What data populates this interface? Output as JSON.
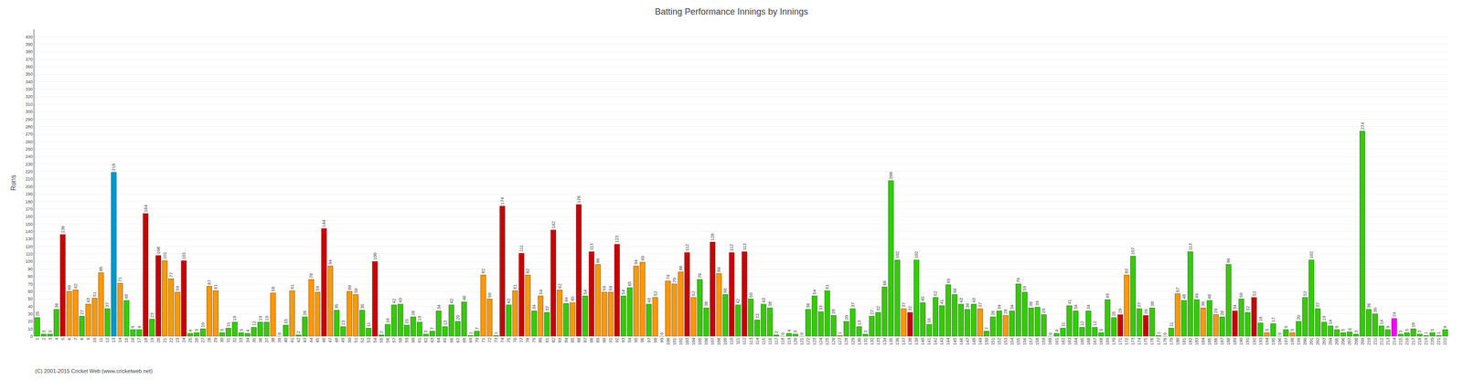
{
  "chart_data": {
    "type": "bar",
    "title": "Batting Performance Innings by Innings",
    "ylabel": "Runs",
    "annotations": [
      "(C) 2001-2015 Cricket Web (www.cricketweb.net)"
    ],
    "categories": [
      "1",
      "2",
      "3",
      "4",
      "5",
      "6",
      "7",
      "8",
      "9",
      "10",
      "11",
      "12",
      "13",
      "14",
      "15",
      "16",
      "17",
      "18",
      "19",
      "20",
      "21",
      "22",
      "23",
      "24",
      "25",
      "26",
      "27",
      "28",
      "29",
      "30",
      "31",
      "32",
      "33",
      "34",
      "35",
      "36",
      "37",
      "38",
      "39",
      "40",
      "41",
      "42",
      "43",
      "44",
      "45",
      "46",
      "47",
      "48",
      "49",
      "50",
      "51",
      "52",
      "53",
      "54",
      "55",
      "56",
      "57",
      "58",
      "59",
      "60",
      "61",
      "62",
      "63",
      "64",
      "65",
      "66",
      "67",
      "68",
      "69",
      "70",
      "71",
      "72",
      "73",
      "74",
      "75",
      "76",
      "77",
      "78",
      "79",
      "80",
      "81",
      "82",
      "83",
      "84",
      "85",
      "86",
      "87",
      "88",
      "89",
      "90",
      "91",
      "92",
      "93",
      "94",
      "95",
      "96",
      "97",
      "98",
      "99",
      "100",
      "101",
      "102",
      "103",
      "104",
      "105",
      "106",
      "107",
      "108",
      "109",
      "110",
      "111",
      "112",
      "113",
      "114",
      "115",
      "116",
      "117",
      "118",
      "119",
      "120",
      "121",
      "122",
      "123",
      "124",
      "125",
      "126",
      "127",
      "128",
      "129",
      "130",
      "131",
      "132",
      "133",
      "134",
      "135",
      "136",
      "137",
      "138",
      "139",
      "140",
      "141",
      "142",
      "143",
      "144",
      "145",
      "146",
      "147",
      "148",
      "149",
      "150",
      "151",
      "152",
      "153",
      "154",
      "155",
      "156",
      "157",
      "158",
      "159",
      "160",
      "161",
      "162",
      "163",
      "164",
      "165",
      "166",
      "167",
      "168",
      "169",
      "170",
      "171",
      "172",
      "173",
      "174",
      "175",
      "176",
      "177",
      "178",
      "179",
      "180",
      "181",
      "182",
      "183",
      "184",
      "185",
      "186",
      "187",
      "188",
      "189",
      "190",
      "191",
      "192",
      "193",
      "194",
      "195",
      "196",
      "197",
      "198",
      "199",
      "200",
      "201",
      "202",
      "203",
      "204",
      "205",
      "206",
      "207",
      "208",
      "209",
      "210",
      "211",
      "212",
      "213",
      "214",
      "215",
      "216",
      "217",
      "218",
      "219",
      "220",
      "221",
      "222"
    ],
    "values": [
      25,
      3,
      3,
      36,
      136,
      60,
      62,
      27,
      43,
      51,
      85,
      37,
      219,
      71,
      48,
      9,
      9,
      164,
      23,
      108,
      101,
      77,
      59,
      101,
      4,
      5,
      10,
      67,
      61,
      5,
      11,
      19,
      5,
      4,
      12,
      19,
      19,
      58,
      0,
      15,
      61,
      2,
      26,
      76,
      59,
      144,
      94,
      35,
      13,
      60,
      56,
      35,
      11,
      100,
      2,
      16,
      42,
      43,
      15,
      26,
      19,
      3,
      7,
      34,
      13,
      42,
      20,
      46,
      1,
      7,
      82,
      50,
      1,
      174,
      42,
      61,
      111,
      82,
      34,
      54,
      32,
      142,
      62,
      44,
      45,
      176,
      54,
      113,
      96,
      59,
      59,
      123,
      54,
      65,
      94,
      99,
      43,
      52,
      0,
      74,
      70,
      86,
      112,
      52,
      76,
      38,
      126,
      84,
      56,
      112,
      42,
      113,
      50,
      22,
      43,
      38,
      2,
      0,
      4,
      3,
      0,
      36,
      54,
      33,
      61,
      28,
      1,
      20,
      37,
      13,
      3,
      27,
      32,
      66,
      208,
      102,
      37,
      32,
      102,
      45,
      16,
      52,
      41,
      69,
      56,
      43,
      36,
      43,
      37,
      7,
      26,
      34,
      28,
      34,
      70,
      59,
      38,
      39,
      29,
      0,
      4,
      11,
      41,
      34,
      12,
      34,
      12,
      5,
      49,
      25,
      29,
      82,
      107,
      37,
      28,
      38,
      1,
      0,
      11,
      57,
      48,
      113,
      49,
      38,
      48,
      29,
      26,
      96,
      34,
      50,
      32,
      52,
      18,
      5,
      17,
      0,
      9,
      5,
      20,
      52,
      102,
      37,
      19,
      14,
      9,
      5,
      6,
      3,
      274,
      36,
      30,
      14,
      9,
      24,
      3,
      5,
      10,
      3,
      1,
      5,
      1,
      9
    ],
    "colors": [
      "#33cc00",
      "#33cc00",
      "#33cc00",
      "#33cc00",
      "#cc0000",
      "#ff9900",
      "#ff9900",
      "#33cc00",
      "#ff9900",
      "#ff9900",
      "#ff9900",
      "#33cc00",
      "#0099cc",
      "#ff9900",
      "#33cc00",
      "#33cc00",
      "#33cc00",
      "#cc0000",
      "#33cc00",
      "#cc0000",
      "#ff9900",
      "#ff9900",
      "#ff9900",
      "#cc0000",
      "#33cc00",
      "#33cc00",
      "#33cc00",
      "#ff9900",
      "#ff9900",
      "#33cc00",
      "#33cc00",
      "#33cc00",
      "#33cc00",
      "#33cc00",
      "#33cc00",
      "#33cc00",
      "#33cc00",
      "#ff9900",
      "#33cc00",
      "#33cc00",
      "#ff9900",
      "#33cc00",
      "#33cc00",
      "#ff9900",
      "#ff9900",
      "#cc0000",
      "#ff9900",
      "#33cc00",
      "#33cc00",
      "#ff9900",
      "#ff9900",
      "#33cc00",
      "#33cc00",
      "#cc0000",
      "#33cc00",
      "#33cc00",
      "#33cc00",
      "#33cc00",
      "#33cc00",
      "#33cc00",
      "#33cc00",
      "#33cc00",
      "#33cc00",
      "#33cc00",
      "#33cc00",
      "#33cc00",
      "#33cc00",
      "#33cc00",
      "#33cc00",
      "#33cc00",
      "#ff9900",
      "#ff9900",
      "#33cc00",
      "#cc0000",
      "#33cc00",
      "#ff9900",
      "#cc0000",
      "#ff9900",
      "#33cc00",
      "#ff9900",
      "#33cc00",
      "#cc0000",
      "#ff9900",
      "#33cc00",
      "#ff9900",
      "#cc0000",
      "#33cc00",
      "#cc0000",
      "#ff9900",
      "#ff9900",
      "#ff9900",
      "#cc0000",
      "#33cc00",
      "#33cc00",
      "#ff9900",
      "#ff9900",
      "#33cc00",
      "#ff9900",
      "#33cc00",
      "#ff9900",
      "#ff9900",
      "#ff9900",
      "#cc0000",
      "#ff9900",
      "#33cc00",
      "#33cc00",
      "#cc0000",
      "#ff9900",
      "#33cc00",
      "#cc0000",
      "#33cc00",
      "#cc0000",
      "#33cc00",
      "#33cc00",
      "#33cc00",
      "#33cc00",
      "#33cc00",
      "#33cc00",
      "#33cc00",
      "#33cc00",
      "#33cc00",
      "#33cc00",
      "#33cc00",
      "#33cc00",
      "#33cc00",
      "#33cc00",
      "#ff9900",
      "#33cc00",
      "#33cc00",
      "#33cc00",
      "#33cc00",
      "#33cc00",
      "#33cc00",
      "#33cc00",
      "#33cc00",
      "#33cc00",
      "#ff9900",
      "#cc0000",
      "#33cc00",
      "#33cc00",
      "#33cc00",
      "#33cc00",
      "#33cc00",
      "#33cc00",
      "#33cc00",
      "#33cc00",
      "#33cc00",
      "#33cc00",
      "#ff9900",
      "#33cc00",
      "#33cc00",
      "#33cc00",
      "#ff9900",
      "#33cc00",
      "#33cc00",
      "#33cc00",
      "#33cc00",
      "#33cc00",
      "#33cc00",
      "#33cc00",
      "#33cc00",
      "#33cc00",
      "#33cc00",
      "#33cc00",
      "#33cc00",
      "#33cc00",
      "#33cc00",
      "#33cc00",
      "#33cc00",
      "#33cc00",
      "#cc0000",
      "#ff9900",
      "#33cc00",
      "#33cc00",
      "#cc0000",
      "#33cc00",
      "#33cc00",
      "#ff9900",
      "#33cc00",
      "#ff9900",
      "#33cc00",
      "#33cc00",
      "#33cc00",
      "#ff9900",
      "#33cc00",
      "#ff9900",
      "#33cc00",
      "#33cc00",
      "#cc0000",
      "#33cc00",
      "#33cc00",
      "#cc0000",
      "#33cc00",
      "#ff9900",
      "#33cc00",
      "#33cc00",
      "#33cc00",
      "#ff9900",
      "#33cc00",
      "#33cc00",
      "#33cc00",
      "#33cc00",
      "#33cc00",
      "#33cc00",
      "#33cc00",
      "#33cc00",
      "#33cc00",
      "#33cc00",
      "#33cc00",
      "#33cc00",
      "#33cc00",
      "#33cc00",
      "#33cc00",
      "#ff00ff",
      "#33cc00",
      "#33cc00",
      "#33cc00",
      "#33cc00",
      "#33cc00",
      "#33cc00",
      "#33cc00",
      "#33cc00",
      "#33cc00",
      "#33cc00",
      "#33cc00"
    ],
    "ylim": [
      0,
      410
    ],
    "yticks": [
      0,
      10,
      20,
      30,
      40,
      50,
      60,
      70,
      80,
      90,
      100,
      110,
      120,
      130,
      140,
      150,
      160,
      170,
      180,
      190,
      200,
      210,
      220,
      230,
      240,
      250,
      260,
      270,
      280,
      290,
      300,
      310,
      320,
      330,
      340,
      350,
      360,
      370,
      380,
      390,
      400
    ],
    "grid": true,
    "data_labels": true
  }
}
